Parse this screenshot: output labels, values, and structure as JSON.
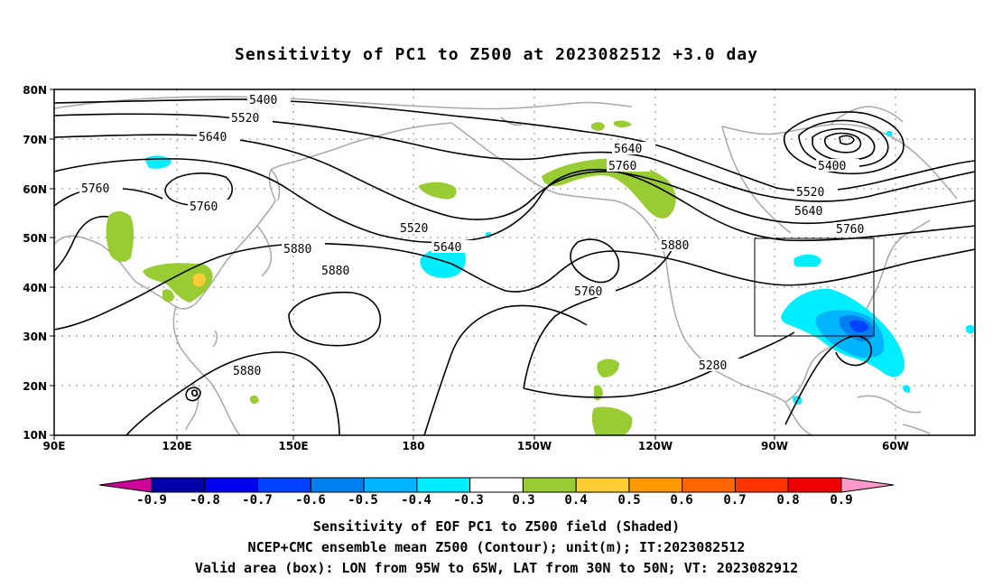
{
  "title": "Sensitivity of PC1 to Z500 at 2023082512 +3.0 day",
  "latitudes": [
    "80N",
    "70N",
    "60N",
    "50N",
    "40N",
    "30N",
    "20N",
    "10N"
  ],
  "longitudes": [
    "90E",
    "120E",
    "150E",
    "180",
    "150W",
    "120W",
    "90W",
    "60W"
  ],
  "contour_labels": [
    "5400",
    "5520",
    "5640",
    "5760",
    "5640",
    "5760",
    "5520",
    "5640",
    "5760",
    "5880",
    "5880",
    "5760",
    "5880",
    "5880",
    "5280",
    "5400",
    "5520",
    "5640",
    "5760"
  ],
  "colorbar": {
    "labels": [
      "-0.9",
      "-0.8",
      "-0.7",
      "-0.6",
      "-0.5",
      "-0.4",
      "-0.3",
      "0.3",
      "0.4",
      "0.5",
      "0.6",
      "0.7",
      "0.8",
      "0.9"
    ],
    "colors": [
      "#0000aa",
      "#0000ee",
      "#0040ff",
      "#0080ee",
      "#00b4ff",
      "#00eeff",
      "#ffffff",
      "#99cc33",
      "#ffcc33",
      "#ff9900",
      "#ff6600",
      "#ff3300",
      "#ee0000"
    ],
    "low_end_color": "#cc0099",
    "high_end_color": "#ff99cc"
  },
  "captions": [
    "Sensitivity of EOF PC1 to Z500 field (Shaded)",
    "NCEP+CMC ensemble mean Z500 (Contour); unit(m); IT:2023082512",
    "Valid area (box): LON from 95W to 65W, LAT from 30N to 50N; VT: 2023082912"
  ]
}
